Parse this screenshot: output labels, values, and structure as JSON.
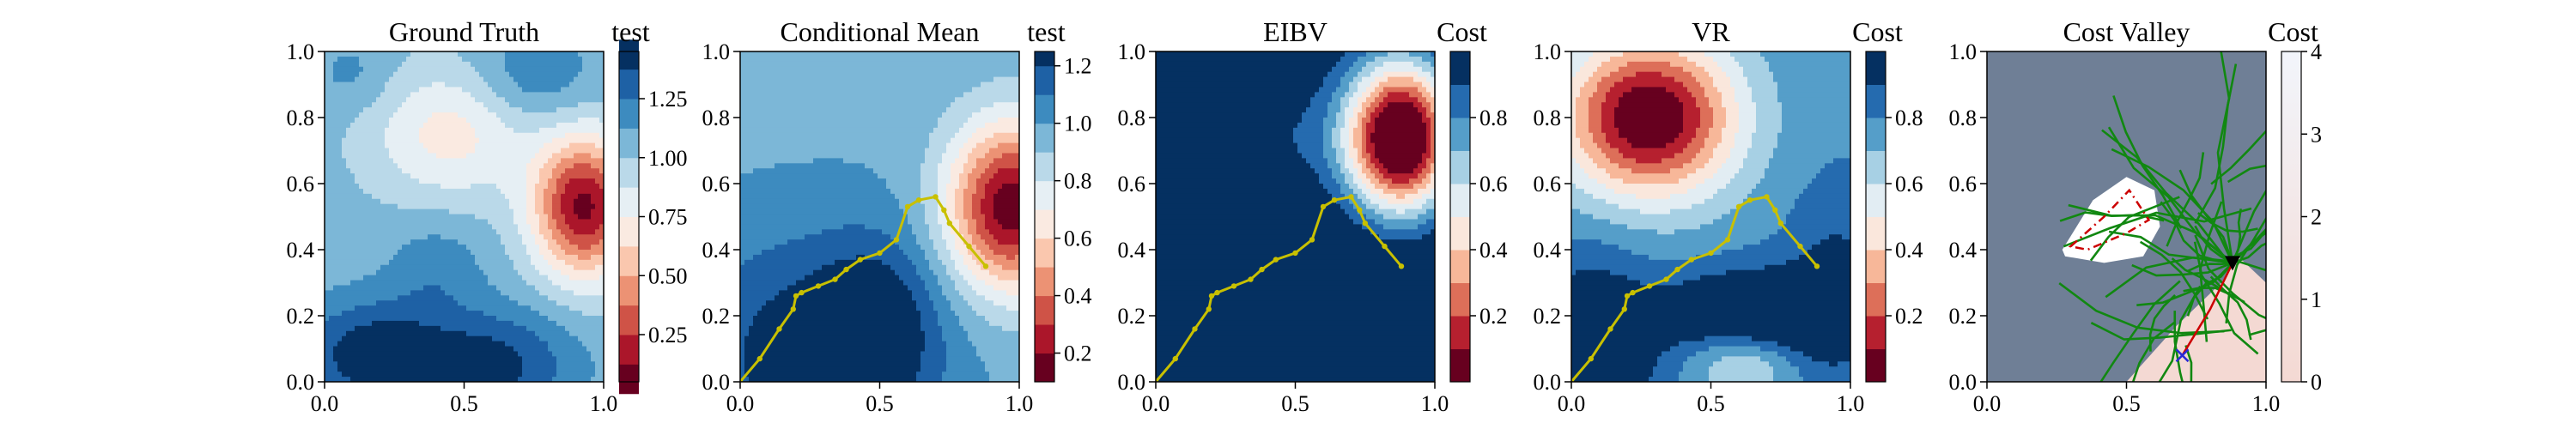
{
  "chart_data": [
    {
      "type": "heatmap",
      "title": "Ground Truth",
      "colorbar_label": "test",
      "colormap": "RdBu",
      "xlim": [
        0.0,
        1.0
      ],
      "ylim": [
        0.0,
        1.0
      ],
      "xticks": [
        "0.0",
        "0.5",
        "1.0"
      ],
      "yticks": [
        "0.0",
        "0.2",
        "0.4",
        "0.6",
        "0.8",
        "1.0"
      ],
      "colorbar_range": [
        0.05,
        1.45
      ],
      "colorbar_ticks": [
        "0.25",
        "0.50",
        "0.75",
        "1.00",
        "1.25"
      ],
      "colorbar_tick_values": [
        0.25,
        0.5,
        0.75,
        1.0,
        1.25
      ],
      "field": {
        "base": 1.05,
        "bumps": [
          {
            "x": 0.93,
            "y": 0.53,
            "sx": 0.13,
            "sy": 0.15,
            "a": -0.95
          },
          {
            "x": 0.45,
            "y": 0.75,
            "sx": 0.2,
            "sy": 0.14,
            "a": -0.35
          },
          {
            "x": 0.18,
            "y": 0.08,
            "sx": 0.2,
            "sy": 0.12,
            "a": 0.42
          },
          {
            "x": 0.62,
            "y": 0.05,
            "sx": 0.2,
            "sy": 0.12,
            "a": 0.35
          },
          {
            "x": 0.4,
            "y": 0.35,
            "sx": 0.12,
            "sy": 0.1,
            "a": 0.15
          },
          {
            "x": 0.75,
            "y": 0.92,
            "sx": 0.15,
            "sy": 0.1,
            "a": 0.2
          },
          {
            "x": 0.1,
            "y": 0.93,
            "sx": 0.1,
            "sy": 0.08,
            "a": 0.12
          }
        ]
      }
    },
    {
      "type": "heatmap",
      "title": "Conditional Mean",
      "colorbar_label": "test",
      "colormap": "RdBu",
      "xlim": [
        0.0,
        1.0
      ],
      "ylim": [
        0.0,
        1.0
      ],
      "xticks": [
        "0.0",
        "0.5",
        "1.0"
      ],
      "yticks": [
        "0.0",
        "0.2",
        "0.4",
        "0.6",
        "0.8",
        "1.0"
      ],
      "colorbar_range": [
        0.1,
        1.25
      ],
      "colorbar_ticks": [
        "0.2",
        "0.4",
        "0.6",
        "0.8",
        "1.0",
        "1.2"
      ],
      "colorbar_tick_values": [
        0.2,
        0.4,
        0.6,
        0.8,
        1.0,
        1.2
      ],
      "field": {
        "base": 0.98,
        "bumps": [
          {
            "x": 0.97,
            "y": 0.53,
            "sx": 0.16,
            "sy": 0.18,
            "a": -0.85
          },
          {
            "x": 0.25,
            "y": 0.08,
            "sx": 0.3,
            "sy": 0.25,
            "a": 0.3
          },
          {
            "x": 0.5,
            "y": 0.18,
            "sx": 0.15,
            "sy": 0.18,
            "a": 0.2
          }
        ]
      },
      "path": {
        "x": [
          0.0,
          0.07,
          0.14,
          0.19,
          0.2,
          0.22,
          0.28,
          0.34,
          0.38,
          0.43,
          0.5,
          0.56,
          0.6,
          0.64,
          0.7,
          0.73,
          0.75,
          0.82,
          0.88
        ],
        "y": [
          0.0,
          0.07,
          0.16,
          0.22,
          0.26,
          0.27,
          0.29,
          0.31,
          0.34,
          0.37,
          0.39,
          0.43,
          0.53,
          0.55,
          0.56,
          0.52,
          0.48,
          0.41,
          0.35
        ]
      }
    },
    {
      "type": "heatmap",
      "title": "EIBV",
      "colorbar_label": "Cost",
      "colormap": "RdBu",
      "xlim": [
        0.0,
        1.0
      ],
      "ylim": [
        0.0,
        1.0
      ],
      "xticks": [
        "0.0",
        "0.5",
        "1.0"
      ],
      "yticks": [
        "0.0",
        "0.2",
        "0.4",
        "0.6",
        "0.8",
        "1.0"
      ],
      "colorbar_range": [
        0.0,
        1.0
      ],
      "colorbar_ticks": [
        "0.2",
        "0.4",
        "0.6",
        "0.8"
      ],
      "colorbar_tick_values": [
        0.2,
        0.4,
        0.6,
        0.8
      ],
      "field": {
        "base": 1.12,
        "bumps": [
          {
            "x": 0.88,
            "y": 0.74,
            "sx": 0.14,
            "sy": 0.17,
            "a": -1.2
          },
          {
            "x": 0.15,
            "y": 0.95,
            "sx": 0.4,
            "sy": 0.22,
            "a": -0.18
          },
          {
            "x": 0.5,
            "y": 0.7,
            "sx": 0.3,
            "sy": 0.12,
            "a": -0.12
          }
        ]
      },
      "path": {
        "x": [
          0.0,
          0.07,
          0.14,
          0.19,
          0.2,
          0.22,
          0.28,
          0.34,
          0.38,
          0.43,
          0.5,
          0.56,
          0.6,
          0.64,
          0.7,
          0.73,
          0.75,
          0.82,
          0.88
        ],
        "y": [
          0.0,
          0.07,
          0.16,
          0.22,
          0.26,
          0.27,
          0.29,
          0.31,
          0.34,
          0.37,
          0.39,
          0.43,
          0.53,
          0.55,
          0.56,
          0.52,
          0.48,
          0.41,
          0.35
        ]
      }
    },
    {
      "type": "heatmap",
      "title": "VR",
      "colorbar_label": "Cost",
      "colormap": "RdBu",
      "xlim": [
        0.0,
        1.0
      ],
      "ylim": [
        0.0,
        1.0
      ],
      "xticks": [
        "0.0",
        "0.5",
        "1.0"
      ],
      "yticks": [
        "0.0",
        "0.2",
        "0.4",
        "0.6",
        "0.8",
        "1.0"
      ],
      "colorbar_range": [
        0.0,
        1.0
      ],
      "colorbar_ticks": [
        "0.2",
        "0.4",
        "0.6",
        "0.8"
      ],
      "colorbar_tick_values": [
        0.2,
        0.4,
        0.6,
        0.8
      ],
      "field": {
        "base": 0.78,
        "bumps": [
          {
            "x": 0.28,
            "y": 0.8,
            "sx": 0.22,
            "sy": 0.17,
            "a": -0.8
          },
          {
            "x": 0.65,
            "y": 0.18,
            "sx": 0.22,
            "sy": 0.1,
            "a": 0.45
          },
          {
            "x": 0.62,
            "y": 0.08,
            "sx": 0.15,
            "sy": 0.08,
            "a": -0.35
          },
          {
            "x": 0.08,
            "y": 0.08,
            "sx": 0.15,
            "sy": 0.2,
            "a": 0.3
          },
          {
            "x": 0.95,
            "y": 0.3,
            "sx": 0.12,
            "sy": 0.2,
            "a": 0.15
          }
        ]
      },
      "path": {
        "x": [
          0.0,
          0.07,
          0.14,
          0.19,
          0.2,
          0.22,
          0.28,
          0.34,
          0.38,
          0.43,
          0.5,
          0.56,
          0.6,
          0.64,
          0.7,
          0.73,
          0.75,
          0.82,
          0.88
        ],
        "y": [
          0.0,
          0.07,
          0.16,
          0.22,
          0.26,
          0.27,
          0.29,
          0.31,
          0.34,
          0.37,
          0.39,
          0.43,
          0.53,
          0.55,
          0.56,
          0.52,
          0.48,
          0.41,
          0.35
        ]
      }
    },
    {
      "type": "heatmap",
      "title": "Cost Valley",
      "colorbar_label": "Cost",
      "colormap": "RdBu",
      "xlim": [
        0.0,
        1.0
      ],
      "ylim": [
        0.0,
        1.0
      ],
      "xticks": [
        "0.0",
        "0.5",
        "1.0"
      ],
      "yticks": [
        "0.0",
        "0.2",
        "0.4",
        "0.6",
        "0.8",
        "1.0"
      ],
      "colorbar_range": [
        0,
        4
      ],
      "colorbar_ticks": [
        "0",
        "1",
        "2",
        "3",
        "4"
      ],
      "colorbar_tick_values": [
        0,
        1,
        2,
        3,
        4
      ],
      "background_color": "#6f7f96",
      "valley_color": "#f4d9d3",
      "tree_color": "#118811",
      "obstacle": {
        "x": [
          0.3,
          0.42,
          0.51,
          0.58,
          0.5,
          0.36
        ],
        "y": [
          0.41,
          0.5,
          0.58,
          0.49,
          0.45,
          0.4
        ]
      },
      "valley": {
        "x": [
          0.5,
          0.68,
          0.84,
          0.9,
          1.0,
          1.0,
          0.5
        ],
        "y": [
          0.0,
          0.17,
          0.3,
          0.38,
          0.3,
          0.0,
          0.0
        ]
      },
      "white_region": {
        "x": [
          0.27,
          0.38,
          0.5,
          0.6,
          0.62,
          0.56,
          0.42,
          0.28
        ],
        "y": [
          0.4,
          0.55,
          0.62,
          0.58,
          0.47,
          0.38,
          0.36,
          0.38
        ]
      },
      "current_location": {
        "x": 0.88,
        "y": 0.36
      },
      "target": {
        "x": 0.7,
        "y": 0.08
      },
      "planned_path": {
        "x": [
          0.88,
          0.8,
          0.7
        ],
        "y": [
          0.36,
          0.22,
          0.08
        ]
      }
    }
  ]
}
